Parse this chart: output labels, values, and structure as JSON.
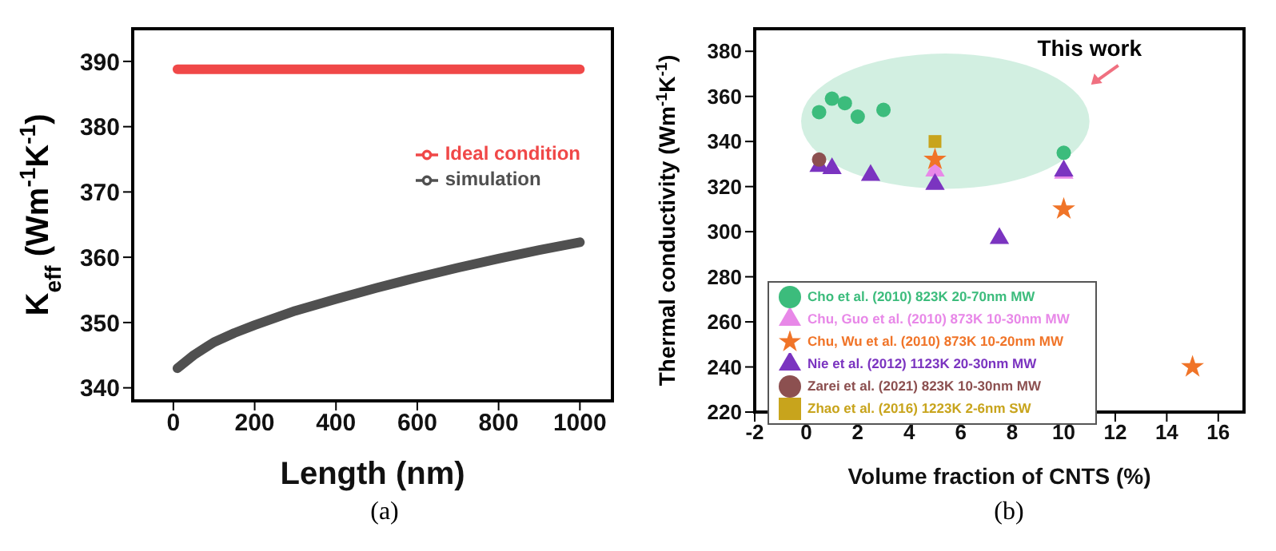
{
  "chart_data": [
    {
      "type": "line",
      "xlabel": "Length (nm)",
      "ylabel": "K$_{eff}$ (Wm$^{-1}$K$^{-1}$)",
      "xlim": [
        -100,
        1080
      ],
      "xticks": [
        0,
        200,
        400,
        600,
        800,
        1000
      ],
      "ylim": [
        338,
        395
      ],
      "yticks": [
        340,
        350,
        360,
        370,
        380,
        390
      ],
      "grid": false,
      "legend": "right",
      "marker": "none",
      "line_style": "solid",
      "annotations": [
        "(a)"
      ],
      "series": [
        {
          "name": "Ideal condition",
          "color": "#f04848",
          "x": [
            10,
            1000
          ],
          "values": [
            388.8,
            388.8
          ]
        },
        {
          "name": "simulation",
          "color": "#505050",
          "x": [
            10,
            50,
            100,
            150,
            200,
            300,
            400,
            500,
            600,
            700,
            800,
            900,
            1000
          ],
          "values": [
            343,
            345,
            347,
            348.4,
            349.6,
            351.8,
            353.6,
            355.3,
            356.9,
            358.4,
            359.8,
            361.1,
            362.3
          ]
        }
      ]
    },
    {
      "type": "scatter",
      "xlabel": "Volume fraction of CNTS (%)",
      "ylabel": "Thermal conductivity (Wm$^{-1}$K$^{-1}$)",
      "xlim": [
        -2,
        17
      ],
      "xticks": [
        -2,
        0,
        2,
        4,
        6,
        8,
        10,
        12,
        14,
        16
      ],
      "ylim": [
        220,
        390
      ],
      "yticks": [
        220,
        240,
        260,
        280,
        300,
        320,
        340,
        360,
        380
      ],
      "grid": false,
      "legend": "bottom left",
      "annotations": [
        "This work",
        "(b)"
      ],
      "series": [
        {
          "name": "Cho et al. (2010)   823K  20-70nm MW",
          "color": "#3cbc7c",
          "marker": "circle",
          "x": [
            0.5,
            1,
            1.5,
            2,
            3,
            10
          ],
          "values": [
            353,
            359,
            357,
            351,
            354,
            335
          ]
        },
        {
          "name": "Chu, Guo et al. (2010)   873K  10-30nm MW",
          "color": "#e888e8",
          "marker": "triangle",
          "x": [
            5,
            10
          ],
          "values": [
            327,
            326
          ]
        },
        {
          "name": "Nie et al. (2012)   1123K 20-30nm MW",
          "color": "#7b34c0",
          "marker": "triangle",
          "x": [
            0.5,
            1,
            2.5,
            5,
            7.5,
            10
          ],
          "values": [
            329,
            328,
            325,
            321,
            297,
            327
          ]
        },
        {
          "name": "Chu, Wu et al. (2010)   873K  10-20nm MW",
          "color": "#f07428",
          "marker": "star",
          "x": [
            5,
            10,
            15
          ],
          "values": [
            332,
            310,
            240
          ]
        },
        {
          "name": "Zarei et al. (2021) 823K  10-30nm MW",
          "color": "#8c5050",
          "marker": "circle",
          "x": [
            0.5
          ],
          "values": [
            332
          ]
        },
        {
          "name": "Zhao et al. (2016)  1223K 2-6nm   SW",
          "color": "#c8a41c",
          "marker": "square",
          "x": [
            5
          ],
          "values": [
            340
          ]
        }
      ]
    }
  ]
}
